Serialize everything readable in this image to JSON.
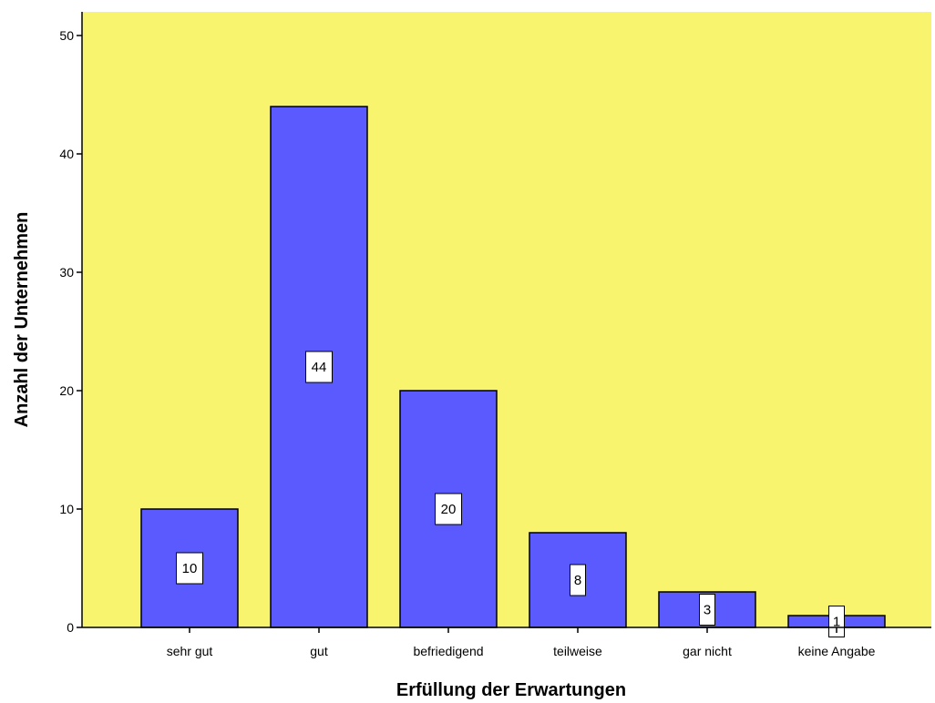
{
  "chart_data": {
    "type": "bar",
    "title": "",
    "xlabel": "Erfüllung der Erwartungen",
    "ylabel": "Anzahl der Unternehmen",
    "categories": [
      "sehr gut",
      "gut",
      "befriedigend",
      "teilweise",
      "gar nicht",
      "keine Angabe"
    ],
    "values": [
      10,
      44,
      20,
      8,
      3,
      1
    ],
    "data_labels": [
      "10",
      "44",
      "20",
      "8",
      "3",
      "1"
    ],
    "ylim": [
      0,
      52
    ],
    "yticks": [
      0,
      10,
      20,
      30,
      40,
      50
    ],
    "ytick_labels": [
      "0",
      "10",
      "20",
      "30",
      "40",
      "50"
    ],
    "grid": false,
    "legend": "none",
    "colors": {
      "plot_background": "#f8f46e",
      "bar_fill": "#5a5aff",
      "bar_stroke": "#000000",
      "label_box": "#ffffff"
    }
  }
}
